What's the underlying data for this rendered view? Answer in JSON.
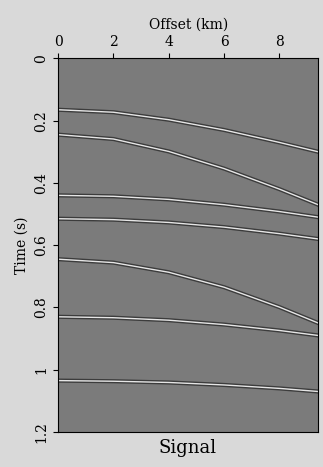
{
  "chart_data": {
    "type": "line",
    "title": "Signal",
    "x_label": "Offset (km)",
    "y_label": "Time (s)",
    "x": [
      0,
      2,
      4,
      6,
      8,
      9.4
    ],
    "series": [
      {
        "values": [
          0.165,
          0.173,
          0.197,
          0.23,
          0.27,
          0.3
        ]
      },
      {
        "values": [
          0.245,
          0.259,
          0.299,
          0.354,
          0.42,
          0.47
        ]
      },
      {
        "values": [
          0.44,
          0.443,
          0.453,
          0.47,
          0.492,
          0.51
        ]
      },
      {
        "values": [
          0.515,
          0.518,
          0.527,
          0.542,
          0.563,
          0.58
        ]
      },
      {
        "values": [
          0.645,
          0.656,
          0.687,
          0.735,
          0.799,
          0.85
        ]
      },
      {
        "values": [
          0.83,
          0.833,
          0.841,
          0.855,
          0.874,
          0.89
        ]
      },
      {
        "values": [
          1.035,
          1.037,
          1.041,
          1.049,
          1.06,
          1.07
        ]
      }
    ],
    "xlim": [
      0,
      9.4
    ],
    "xticks": [
      0,
      2,
      4,
      6,
      8
    ],
    "ylim": [
      1.2,
      0
    ],
    "yticks": [
      0,
      0.2,
      0.4,
      0.6,
      0.8,
      1,
      1.2
    ],
    "grid": false
  }
}
